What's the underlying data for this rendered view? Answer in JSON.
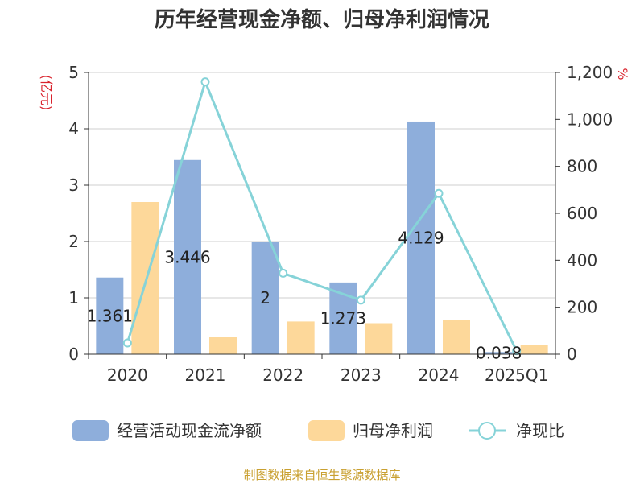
{
  "title": "历年经营现金净额、归母净利润情况",
  "source": "制图数据来自恒生聚源数据库",
  "chart_data": {
    "type": "bar",
    "categories": [
      "2020",
      "2021",
      "2022",
      "2023",
      "2024",
      "2025Q1"
    ],
    "series": [
      {
        "name": "经营活动现金流净额",
        "kind": "bar",
        "axis": "left",
        "color": "#8eaedb",
        "values": [
          1.361,
          3.446,
          2,
          1.273,
          4.129,
          0.038
        ],
        "labels": [
          "1.361",
          "3.446",
          "2",
          "1.273",
          "4.129",
          "0.038"
        ]
      },
      {
        "name": "归母净利润",
        "kind": "bar",
        "axis": "left",
        "color": "#fdd89a",
        "values": [
          2.7,
          0.3,
          0.58,
          0.55,
          0.6,
          0.17
        ]
      },
      {
        "name": "净现比",
        "kind": "line",
        "axis": "right",
        "color": "#86d3d8",
        "values": [
          48,
          1160,
          345,
          230,
          685,
          15
        ]
      }
    ],
    "y_left": {
      "unit": "(亿元)",
      "ylim": [
        0,
        5
      ],
      "ticks": [
        "0",
        "1",
        "2",
        "3",
        "4",
        "5"
      ]
    },
    "y_right": {
      "unit": "%",
      "ylim": [
        0,
        1200
      ],
      "ticks": [
        "0",
        "200",
        "400",
        "600",
        "800",
        "1,000",
        "1,200"
      ]
    },
    "grid": true,
    "legend": "bottom"
  }
}
